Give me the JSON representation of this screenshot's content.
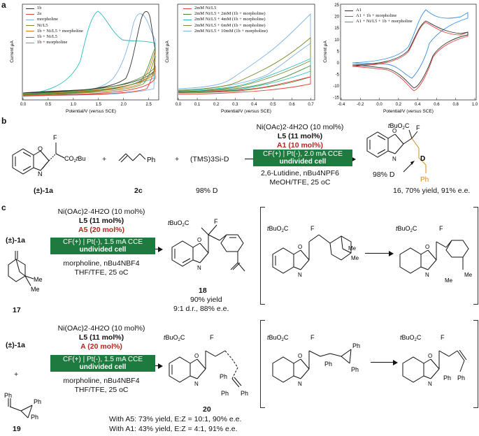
{
  "panel_a": {
    "letter": "a",
    "chart1_legend": [
      "1b",
      "2a",
      "morpholine",
      "Ni/L5",
      "1b + Ni/L5 + morpholine",
      "1b + Ni/L5",
      "1b + morpholine"
    ],
    "chart2_legend": [
      "2mM Ni/L5",
      "2mM Ni/L5 + 2mM (1b + morpholine)",
      "2mM Ni/L5 + 4mM (1b + morpholine)",
      "2mM Ni/L5 + 6mM (1b + morpholine)",
      "2mM Ni/L5 + 10mM (1b + morpholine)"
    ],
    "chart3_legend": [
      "A1",
      "A1 + 1b + morpholine",
      "A1 + Ni/L5 + 1b + morpholine"
    ],
    "colors": {
      "c1": "#333333",
      "c2": "#e0423a",
      "c3": "#7fb3e6",
      "c4": "#7a8a2a",
      "c5": "#d87f1f",
      "c6": "#4a8a3a",
      "c7": "#2bbbbb"
    }
  },
  "chart_data": [
    {
      "type": "line",
      "title": "",
      "xlabel": "Potential/V (versus SCE)",
      "ylabel": "Current μA",
      "x_ticks": [
        "0.0",
        "0.5",
        "1.0",
        "1.5",
        "2.0",
        "2.5"
      ],
      "xlim": [
        0,
        2.7
      ],
      "series_names": [
        "1b",
        "2a",
        "morpholine",
        "Ni/L5",
        "1b + Ni/L5 + morpholine",
        "1b + Ni/L5",
        "1b + morpholine"
      ]
    },
    {
      "type": "line",
      "title": "",
      "xlabel": "Potential/V (versus SCE)",
      "ylabel": "Current μA",
      "x_ticks": [
        "0.0",
        "0.1",
        "0.2",
        "0.3",
        "0.4",
        "0.5",
        "0.6",
        "0.7"
      ],
      "xlim": [
        0,
        0.72
      ],
      "series_names": [
        "2mM Ni/L5",
        "2mM Ni/L5 + 2mM (1b + morpholine)",
        "2mM Ni/L5 + 4mM (1b + morpholine)",
        "2mM Ni/L5 + 6mM (1b + morpholine)",
        "2mM Ni/L5 + 10mM (1b + morpholine)"
      ]
    },
    {
      "type": "line",
      "title": "",
      "xlabel": "Potential/V (versus SCE)",
      "ylabel": "Current μA",
      "x_ticks": [
        "-0.4",
        "-0.2",
        "0.0",
        "0.2",
        "0.4",
        "0.6",
        "0.8",
        "1.0"
      ],
      "y_ticks": [
        "-15",
        "-10",
        "-5",
        "0",
        "5",
        "10",
        "15",
        "20",
        "25"
      ],
      "xlim": [
        -0.4,
        1.0
      ],
      "ylim": [
        -16,
        25
      ],
      "series_names": [
        "A1",
        "A1 + 1b + morpholine",
        "A1 + Ni/L5 + 1b + morpholine"
      ]
    }
  ],
  "panel_b": {
    "letter": "b",
    "reagent1_label": "(±)-1a",
    "reagent2_label": "2c",
    "reagent3": "(TMS)3Si-D",
    "reagent3_note": "98% D",
    "plus": "+",
    "cond_line1": "Ni(OAc)2·4H2O (10 mol%)",
    "cond_line2": "L5 (11 mol%)",
    "cond_line3": "A1 (10 mol%)",
    "box_line1": "CF(+) | Pt(-), 2.0 mA CCE",
    "box_line2": "undivided cell",
    "cond_line4": "2,6-Lutidine, nBu4NPF6",
    "cond_line5": "MeOH/TFE, 25 oC",
    "product_label": "16, 70% yield, 91% e.e.",
    "product_note": "98% D",
    "atom_D": "D",
    "atom_F": "F",
    "ester1": "CO2tBu",
    "ester2": "tBuO2C",
    "ph": "Ph"
  },
  "panel_c": {
    "letter": "c",
    "rxn1": {
      "reagent1_label": "(±)-1a",
      "reagent2_label": "17",
      "cond_line1": "Ni(OAc)2·4H2O (10 mol%)",
      "cond_line2": "L5 (11 mol%)",
      "cond_line3": "A5 (20 mol%)",
      "box_line1": "CF(+) | Pt(-), 1.5 mA CCE",
      "box_line2": "undivided cell",
      "cond_line4": "morpholine, nBu4NBF4",
      "cond_line5": "THF/TFE, 25 oC",
      "product_label": "18",
      "yield": "90% yield",
      "dr": "9:1 d.r., 88% e.e.",
      "me": "Me"
    },
    "rxn2": {
      "reagent1_label": "(±)-1a",
      "reagent2_label": "19",
      "cond_line1": "Ni(OAc)2·4H2O (10 mol%)",
      "cond_line2": "L5 (11 mol%)",
      "cond_line3": "A (20 mol%)",
      "box_line1": "CF(+) | Pt(-), 1.5 mA CCE",
      "box_line2": "undivided cell",
      "cond_line4": "morpholine, nBu4NBF4",
      "cond_line5": "THF/TFE, 25 oC",
      "product_label": "20",
      "result1": "With A5: 73% yield, E:Z = 10:1, 90% e.e.",
      "result2": "With A1: 43% yield, E:Z = 4:1, 91% e.e."
    }
  }
}
